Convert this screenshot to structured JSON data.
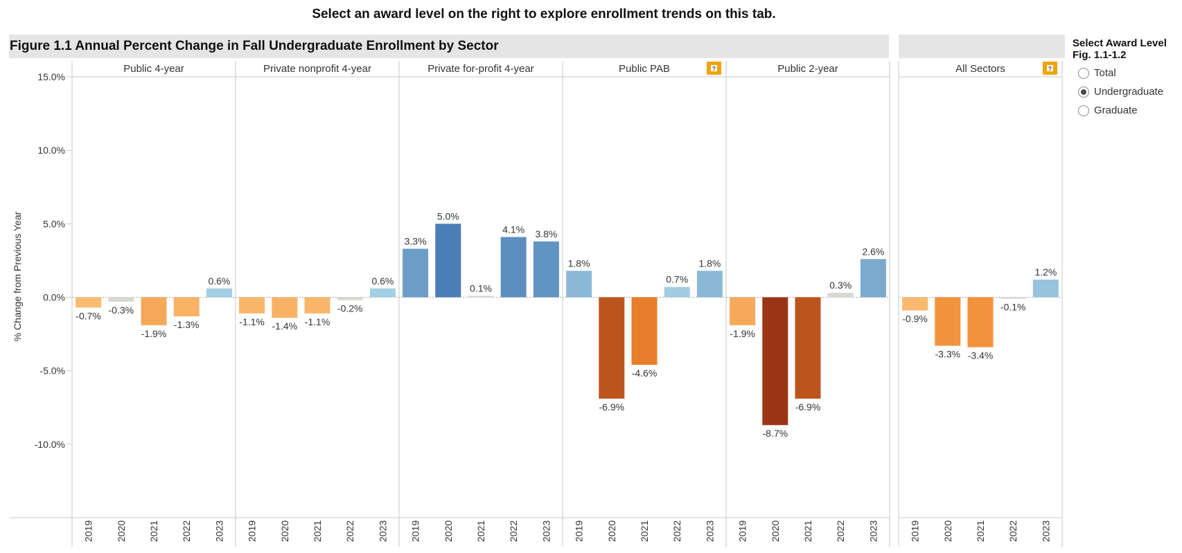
{
  "instruction": "Select an award level on the right to explore enrollment trends on this tab.",
  "chart_title": "Figure 1.1 Annual Percent Change in Fall Undergraduate Enrollment by Sector",
  "award_selector": {
    "title_line1": "Select Award Level",
    "title_line2": "Fig. 1.1-1.2",
    "options": [
      "Total",
      "Undergraduate",
      "Graduate"
    ],
    "selected": "Undergraduate"
  },
  "help_icon_glyph": "?",
  "colors": {
    "text": "#222222",
    "grid": "#c8c8c8",
    "zero_line": "#a8a8a8",
    "band": "#e5e5e5",
    "help_icon": "#f0a30a"
  },
  "chart_data": {
    "type": "bar",
    "ylabel": "% Change from Previous Year",
    "ylim": [
      -15,
      15
    ],
    "yticks": [
      15,
      10,
      5,
      0,
      -5,
      -10
    ],
    "ytick_labels": [
      "15.0%",
      "10.0%",
      "5.0%",
      "0.0%",
      "-5.0%",
      "-10.0%"
    ],
    "categories": [
      "2019",
      "2020",
      "2021",
      "2022",
      "2023"
    ],
    "panels": [
      {
        "name": "Public 4-year",
        "values": [
          -0.7,
          -0.3,
          -1.9,
          -1.3,
          0.6
        ],
        "labels": [
          "-0.7%",
          "-0.3%",
          "-1.9%",
          "-1.3%",
          "0.6%"
        ],
        "help_icon": false
      },
      {
        "name": "Private nonprofit 4-year",
        "values": [
          -1.1,
          -1.4,
          -1.1,
          -0.2,
          0.6
        ],
        "labels": [
          "-1.1%",
          "-1.4%",
          "-1.1%",
          "-0.2%",
          "0.6%"
        ],
        "help_icon": false
      },
      {
        "name": "Private for-profit 4-year",
        "values": [
          3.3,
          5.0,
          0.1,
          4.1,
          3.8
        ],
        "labels": [
          "3.3%",
          "5.0%",
          "0.1%",
          "4.1%",
          "3.8%"
        ],
        "help_icon": false
      },
      {
        "name": "Public PAB",
        "values": [
          1.8,
          -6.9,
          -4.6,
          0.7,
          1.8
        ],
        "labels": [
          "1.8%",
          "-6.9%",
          "-4.6%",
          "0.7%",
          "1.8%"
        ],
        "help_icon": true
      },
      {
        "name": "Public 2-year",
        "values": [
          -1.9,
          -8.7,
          -6.9,
          0.3,
          2.6
        ],
        "labels": [
          "-1.9%",
          "-8.7%",
          "-6.9%",
          "0.3%",
          "2.6%"
        ],
        "help_icon": false
      },
      {
        "name": "All Sectors",
        "values": [
          -0.9,
          -3.3,
          -3.4,
          -0.1,
          1.2
        ],
        "labels": [
          "-0.9%",
          "-3.3%",
          "-3.4%",
          "-0.1%",
          "1.2%"
        ],
        "help_icon": true
      }
    ]
  }
}
